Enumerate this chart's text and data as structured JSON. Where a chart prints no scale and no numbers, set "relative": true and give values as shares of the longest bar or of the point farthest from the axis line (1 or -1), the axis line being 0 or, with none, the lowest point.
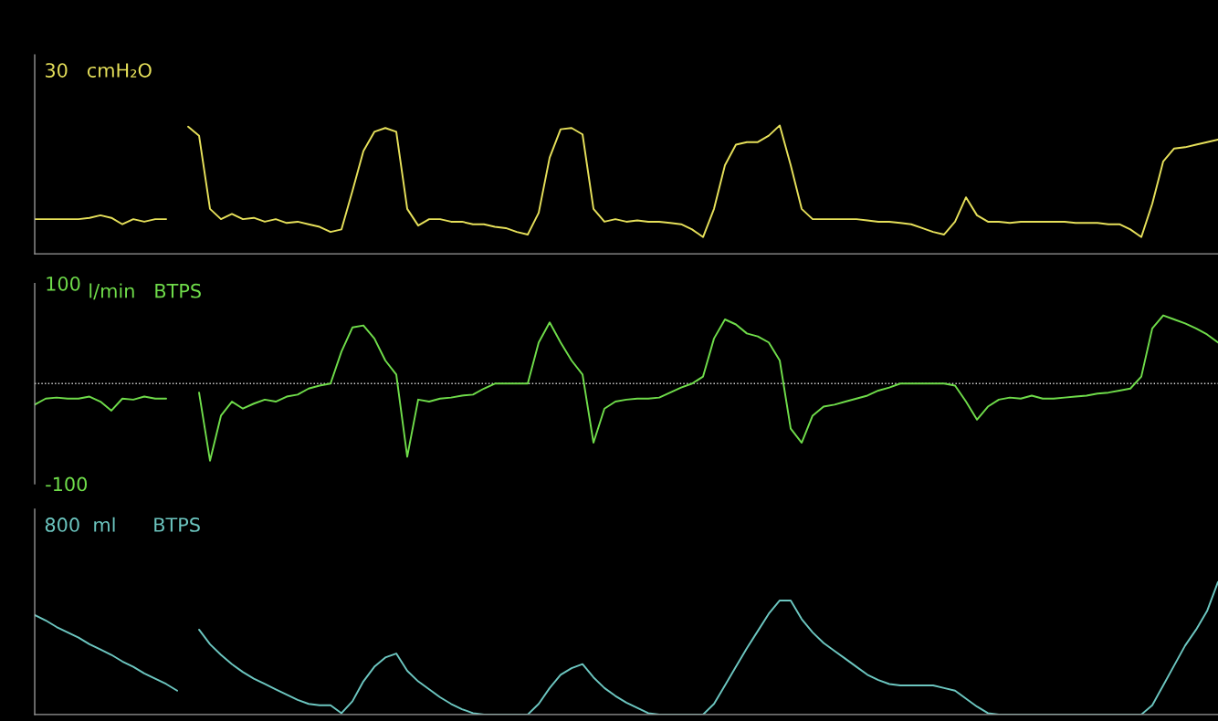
{
  "chart_data": [
    {
      "type": "line",
      "relative": true,
      "ylabel": "30   cmH₂O",
      "tick_labels": false,
      "categories": [
        null,
        null,
        null,
        null,
        null,
        null,
        null,
        null,
        null,
        null,
        null,
        null,
        null,
        null,
        null,
        null,
        null,
        null,
        null,
        null,
        null,
        null,
        null,
        null,
        null,
        null,
        null,
        null,
        null,
        null,
        null,
        null,
        null,
        null,
        null,
        null,
        null,
        null,
        null,
        null,
        null,
        null,
        null,
        null,
        null,
        null,
        null,
        null,
        null,
        null,
        null,
        null,
        null,
        null,
        null,
        null,
        null,
        null,
        null,
        null,
        null,
        null,
        null,
        null,
        null,
        null,
        null,
        null,
        null,
        null,
        null,
        null,
        null,
        null,
        null,
        null,
        null,
        null,
        null,
        null,
        null,
        null,
        null,
        null,
        null,
        null,
        null,
        null,
        null,
        null,
        null,
        null,
        null,
        null,
        null,
        null,
        null,
        null,
        null,
        null,
        null,
        null,
        null,
        null,
        null,
        null,
        null,
        null,
        null
      ],
      "series": [
        {
          "color": "#e6e05a",
          "values": [
            0.27,
            0.27,
            0.27,
            0.27,
            0.27,
            0.28,
            0.3,
            0.28,
            0.23,
            0.27,
            0.25,
            0.27,
            0.27,
            null,
            null,
            null,
            null,
            null,
            null,
            null,
            null,
            null,
            null,
            null,
            null,
            null,
            null,
            null,
            null,
            null,
            null,
            null,
            null,
            null,
            null,
            null,
            null,
            null,
            null,
            null,
            null,
            null,
            null,
            null,
            null,
            null,
            null,
            null,
            null,
            null,
            null,
            null,
            null,
            null,
            null,
            null,
            null,
            null,
            null,
            null,
            null,
            null,
            null,
            null,
            null,
            null,
            null,
            null,
            null,
            null,
            null,
            null,
            null,
            null,
            null,
            null,
            null,
            null,
            null,
            null,
            null,
            null,
            null,
            null,
            null,
            null,
            null,
            null,
            null,
            null,
            null,
            null,
            null,
            null,
            null,
            null,
            null,
            null,
            null,
            null,
            null,
            null,
            null,
            null,
            null,
            null,
            null,
            null,
            null
          ]
        },
        {
          "color": "#e6e05a",
          "values": [
            null,
            null,
            null,
            null,
            null,
            null,
            null,
            null,
            null,
            null,
            null,
            null,
            null,
            null,
            0.99,
            0.92,
            0.35,
            0.27,
            0.31,
            0.27,
            0.28,
            0.25,
            0.27,
            0.24,
            0.25,
            0.23,
            0.21,
            0.17,
            0.19,
            0.49,
            0.8,
            0.95,
            0.98,
            0.95,
            0.35,
            0.22,
            0.27,
            0.27,
            0.25,
            0.25,
            0.23,
            0.23,
            0.21,
            0.2,
            0.17,
            0.15,
            0.32,
            0.75,
            0.97,
            0.98,
            0.93,
            0.35,
            0.25,
            0.27,
            0.25,
            0.26,
            0.25,
            0.25,
            0.24,
            0.23,
            0.19,
            0.13,
            0.35,
            0.69,
            0.85,
            0.87,
            0.87,
            0.92,
            1.0,
            0.69,
            0.35,
            0.27,
            0.27,
            0.27,
            0.27,
            0.27,
            0.26,
            0.25,
            0.25,
            0.24,
            0.23,
            0.2,
            0.17,
            0.15,
            0.25,
            0.44,
            0.3,
            0.25,
            0.25,
            0.24,
            0.25,
            0.25,
            0.25,
            0.25,
            0.25,
            0.24,
            0.24,
            0.24,
            0.23,
            0.23,
            0.19,
            0.13,
            0.39,
            0.72,
            0.82,
            0.83,
            0.85,
            0.87,
            0.89
          ]
        }
      ]
    },
    {
      "type": "line",
      "ylabel": "l/min   BTPS",
      "tick_labels": "y",
      "ylim": [
        -100,
        100
      ],
      "yticks": [
        -100,
        100
      ],
      "ref_lines": [
        {
          "axis": "y",
          "value": 0,
          "color": "#d8d8d8",
          "line_style": "dotted"
        }
      ],
      "categories": [
        null,
        null,
        null,
        null,
        null,
        null,
        null,
        null,
        null,
        null,
        null,
        null,
        null,
        null,
        null,
        null,
        null,
        null,
        null,
        null,
        null,
        null,
        null,
        null,
        null,
        null,
        null,
        null,
        null,
        null,
        null,
        null,
        null,
        null,
        null,
        null,
        null,
        null,
        null,
        null,
        null,
        null,
        null,
        null,
        null,
        null,
        null,
        null,
        null,
        null,
        null,
        null,
        null,
        null,
        null,
        null,
        null,
        null,
        null,
        null,
        null,
        null,
        null,
        null,
        null,
        null,
        null,
        null,
        null,
        null,
        null,
        null,
        null,
        null,
        null,
        null,
        null,
        null,
        null,
        null,
        null,
        null,
        null,
        null,
        null,
        null,
        null,
        null,
        null,
        null,
        null,
        null,
        null,
        null,
        null,
        null,
        null,
        null,
        null,
        null,
        null,
        null,
        null,
        null,
        null,
        null,
        null,
        null,
        null
      ],
      "series": [
        {
          "color": "#6fdc4a",
          "values": [
            -21,
            -15,
            -14,
            -15,
            -15,
            -13,
            -18,
            -27,
            -15,
            -16,
            -13,
            -15,
            -15,
            null,
            null,
            null,
            null,
            null,
            null,
            null,
            null,
            null,
            null,
            null,
            null,
            null,
            null,
            null,
            null,
            null,
            null,
            null,
            null,
            null,
            null,
            null,
            null,
            null,
            null,
            null,
            null,
            null,
            null,
            null,
            null,
            null,
            null,
            null,
            null,
            null,
            null,
            null,
            null,
            null,
            null,
            null,
            null,
            null,
            null,
            null,
            null,
            null,
            null,
            null,
            null,
            null,
            null,
            null,
            null,
            null,
            null,
            null,
            null,
            null,
            null,
            null,
            null,
            null,
            null,
            null,
            null,
            null,
            null,
            null,
            null,
            null,
            null,
            null,
            null,
            null,
            null,
            null,
            null,
            null,
            null,
            null,
            null,
            null,
            null,
            null,
            null,
            null,
            null,
            null,
            null,
            null,
            null,
            null,
            null
          ]
        },
        {
          "color": "#6fdc4a",
          "values": [
            null,
            null,
            null,
            null,
            null,
            null,
            null,
            null,
            null,
            null,
            null,
            null,
            null,
            null,
            null,
            -9,
            -77,
            -32,
            -18,
            -25,
            -20,
            -16,
            -18,
            -13,
            -11,
            -5,
            -2,
            0,
            32,
            56,
            58,
            45,
            23,
            9,
            -73,
            -16,
            -18,
            -15,
            -14,
            -12,
            -11,
            -5,
            0,
            0,
            0,
            0,
            41,
            61,
            41,
            23,
            9,
            -59,
            -25,
            -18,
            -16,
            -15,
            -15,
            -14,
            -9,
            -4,
            0,
            7,
            45,
            64,
            59,
            50,
            47,
            41,
            23,
            -45,
            -59,
            -32,
            -23,
            -21,
            -18,
            -15,
            -12,
            -7,
            -4,
            0,
            0,
            0,
            0,
            0,
            -2,
            -18,
            -36,
            -23,
            -16,
            -14,
            -15,
            -12,
            -15,
            -15,
            -14,
            -13,
            -12,
            -10,
            -9,
            -7,
            -5,
            7,
            55,
            68,
            64,
            60,
            55,
            49,
            41
          ]
        }
      ]
    },
    {
      "type": "line",
      "relative": true,
      "ylabel": "800  ml      BTPS",
      "tick_labels": false,
      "categories": [
        null,
        null,
        null,
        null,
        null,
        null,
        null,
        null,
        null,
        null,
        null,
        null,
        null,
        null,
        null,
        null,
        null,
        null,
        null,
        null,
        null,
        null,
        null,
        null,
        null,
        null,
        null,
        null,
        null,
        null,
        null,
        null,
        null,
        null,
        null,
        null,
        null,
        null,
        null,
        null,
        null,
        null,
        null,
        null,
        null,
        null,
        null,
        null,
        null,
        null,
        null,
        null,
        null,
        null,
        null,
        null,
        null,
        null,
        null,
        null,
        null,
        null,
        null,
        null,
        null,
        null,
        null,
        null,
        null,
        null,
        null,
        null,
        null,
        null,
        null,
        null,
        null,
        null,
        null,
        null,
        null,
        null,
        null,
        null,
        null,
        null,
        null,
        null,
        null,
        null,
        null,
        null,
        null,
        null,
        null,
        null,
        null,
        null,
        null,
        null,
        null,
        null,
        null,
        null,
        null,
        null,
        null,
        null,
        null
      ],
      "series": [
        {
          "color": "#6cc6c0",
          "values": [
            0.75,
            0.71,
            0.66,
            0.62,
            0.58,
            0.53,
            0.49,
            0.45,
            0.4,
            0.36,
            0.31,
            0.27,
            0.23,
            0.18,
            null,
            null,
            null,
            null,
            null,
            null,
            null,
            null,
            null,
            null,
            null,
            null,
            null,
            null,
            null,
            null,
            null,
            null,
            null,
            null,
            null,
            null,
            null,
            null,
            null,
            null,
            null,
            null,
            null,
            null,
            null,
            null,
            null,
            null,
            null,
            null,
            null,
            null,
            null,
            null,
            null,
            null,
            null,
            null,
            null,
            null,
            null,
            null,
            null,
            null,
            null,
            null,
            null,
            null,
            null,
            null,
            null,
            null,
            null,
            null,
            null,
            null,
            null,
            null,
            null,
            null,
            null,
            null,
            null,
            null,
            null,
            null,
            null,
            null,
            null,
            null,
            null,
            null,
            null,
            null,
            null,
            null,
            null,
            null,
            null,
            null,
            null,
            null,
            null,
            null,
            null,
            null,
            null,
            null,
            null
          ]
        },
        {
          "color": "#6cc6c0",
          "values": [
            null,
            null,
            null,
            null,
            null,
            null,
            null,
            null,
            null,
            null,
            null,
            null,
            null,
            null,
            null,
            0.64,
            0.53,
            0.45,
            0.38,
            0.32,
            0.27,
            0.23,
            0.19,
            0.15,
            0.11,
            0.08,
            0.07,
            0.07,
            0.01,
            0.1,
            0.25,
            0.36,
            0.43,
            0.46,
            0.33,
            0.25,
            0.19,
            0.13,
            0.08,
            0.04,
            0.01,
            0,
            0,
            0,
            0,
            0,
            0.08,
            0.2,
            0.3,
            0.35,
            0.38,
            0.28,
            0.2,
            0.14,
            0.09,
            0.05,
            0.01,
            0,
            0,
            0,
            0,
            0,
            0.08,
            0.22,
            0.36,
            0.5,
            0.63,
            0.76,
            0.86,
            0.86,
            0.72,
            0.62,
            0.54,
            0.48,
            0.42,
            0.36,
            0.3,
            0.26,
            0.23,
            0.22,
            0.22,
            0.22,
            0.22,
            0.2,
            0.18,
            0.12,
            0.06,
            0.01,
            0,
            0,
            0,
            0,
            0,
            0,
            0,
            0,
            0,
            0,
            0,
            0,
            0,
            0,
            0.07,
            0.22,
            0.37,
            0.52,
            0.64,
            0.78,
            1.0
          ]
        }
      ]
    }
  ]
}
